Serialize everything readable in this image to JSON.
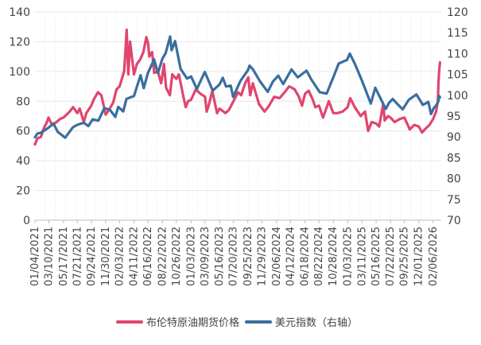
{
  "chart_data": {
    "type": "line",
    "title": "",
    "xlabel": "",
    "ylabel": "",
    "y_left": {
      "min": 0,
      "max": 140,
      "ticks": [
        0,
        20,
        40,
        60,
        80,
        100,
        120,
        140
      ]
    },
    "y_right": {
      "min": 70,
      "max": 120,
      "ticks": [
        70,
        75,
        80,
        85,
        90,
        95,
        100,
        105,
        110,
        115,
        120
      ]
    },
    "x_range": [
      "2021-01-04",
      "2026-03-10"
    ],
    "x_tick_labels": [
      "01/04/2021",
      "03/10/2021",
      "05/17/2021",
      "07/21/2021",
      "09/24/2021",
      "11/30/2021",
      "02/03/2022",
      "04/11/2022",
      "06/16/2022",
      "08/22/2022",
      "10/26/2022",
      "01/03/2023",
      "03/09/2023",
      "05/16/2023",
      "07/20/2023",
      "09/25/2023",
      "11/29/2023",
      "02/06/2024",
      "04/12/2024",
      "06/18/2024",
      "08/22/2024",
      "10/28/2024",
      "01/03/2025",
      "03/11/2025",
      "05/16/2025",
      "07/22/2025",
      "09/25/2025",
      "12/01/2025",
      "02/06/2026"
    ],
    "grid": true,
    "legend_position": "bottom",
    "series": [
      {
        "name": "布伦特原油期货价格",
        "axis": "left",
        "color": "#e0456e",
        "points": [
          [
            "2021-01-04",
            51
          ],
          [
            "2021-01-15",
            55
          ],
          [
            "2021-02-01",
            56
          ],
          [
            "2021-02-15",
            62
          ],
          [
            "2021-03-01",
            66
          ],
          [
            "2021-03-08",
            69
          ],
          [
            "2021-03-25",
            64
          ],
          [
            "2021-04-15",
            66
          ],
          [
            "2021-05-01",
            68
          ],
          [
            "2021-05-17",
            69
          ],
          [
            "2021-06-01",
            71
          ],
          [
            "2021-06-15",
            73
          ],
          [
            "2021-07-01",
            76
          ],
          [
            "2021-07-21",
            72
          ],
          [
            "2021-08-01",
            75
          ],
          [
            "2021-08-20",
            66
          ],
          [
            "2021-09-01",
            72
          ],
          [
            "2021-09-24",
            77
          ],
          [
            "2021-10-05",
            81
          ],
          [
            "2021-10-25",
            86
          ],
          [
            "2021-11-10",
            84
          ],
          [
            "2021-11-30",
            71
          ],
          [
            "2021-12-15",
            74
          ],
          [
            "2022-01-04",
            79
          ],
          [
            "2022-01-20",
            88
          ],
          [
            "2022-02-03",
            90
          ],
          [
            "2022-02-24",
            100
          ],
          [
            "2022-03-01",
            110
          ],
          [
            "2022-03-08",
            128
          ],
          [
            "2022-03-16",
            98
          ],
          [
            "2022-03-24",
            120
          ],
          [
            "2022-04-11",
            98
          ],
          [
            "2022-04-25",
            105
          ],
          [
            "2022-05-10",
            108
          ],
          [
            "2022-05-25",
            113
          ],
          [
            "2022-06-08",
            123
          ],
          [
            "2022-06-16",
            119
          ],
          [
            "2022-06-22",
            110
          ],
          [
            "2022-07-05",
            113
          ],
          [
            "2022-07-15",
            99
          ],
          [
            "2022-08-01",
            100
          ],
          [
            "2022-08-16",
            92
          ],
          [
            "2022-08-29",
            105
          ],
          [
            "2022-09-08",
            89
          ],
          [
            "2022-09-26",
            84
          ],
          [
            "2022-10-07",
            98
          ],
          [
            "2022-10-26",
            95
          ],
          [
            "2022-11-07",
            98
          ],
          [
            "2022-11-28",
            83
          ],
          [
            "2022-12-09",
            76
          ],
          [
            "2022-12-20",
            80
          ],
          [
            "2023-01-03",
            81
          ],
          [
            "2023-01-25",
            88
          ],
          [
            "2023-02-15",
            85
          ],
          [
            "2023-03-09",
            83
          ],
          [
            "2023-03-17",
            73
          ],
          [
            "2023-03-28",
            78
          ],
          [
            "2023-04-12",
            87
          ],
          [
            "2023-05-04",
            72
          ],
          [
            "2023-05-16",
            75
          ],
          [
            "2023-06-12",
            72
          ],
          [
            "2023-06-28",
            74
          ],
          [
            "2023-07-20",
            80
          ],
          [
            "2023-08-10",
            86
          ],
          [
            "2023-08-25",
            84
          ],
          [
            "2023-09-12",
            92
          ],
          [
            "2023-09-27",
            96
          ],
          [
            "2023-10-06",
            84
          ],
          [
            "2023-10-18",
            92
          ],
          [
            "2023-11-16",
            78
          ],
          [
            "2023-12-12",
            73
          ],
          [
            "2024-01-02",
            77
          ],
          [
            "2024-01-26",
            83
          ],
          [
            "2024-02-20",
            82
          ],
          [
            "2024-03-15",
            86
          ],
          [
            "2024-04-05",
            90
          ],
          [
            "2024-04-30",
            88
          ],
          [
            "2024-05-20",
            83
          ],
          [
            "2024-06-04",
            77
          ],
          [
            "2024-06-18",
            85
          ],
          [
            "2024-07-05",
            87
          ],
          [
            "2024-07-24",
            81
          ],
          [
            "2024-08-05",
            76
          ],
          [
            "2024-08-22",
            77
          ],
          [
            "2024-09-10",
            69
          ],
          [
            "2024-10-07",
            80
          ],
          [
            "2024-10-28",
            72
          ],
          [
            "2024-11-15",
            72
          ],
          [
            "2024-12-10",
            73
          ],
          [
            "2025-01-03",
            76
          ],
          [
            "2025-01-15",
            82
          ],
          [
            "2025-02-05",
            76
          ],
          [
            "2025-03-05",
            70
          ],
          [
            "2025-03-25",
            73
          ],
          [
            "2025-04-09",
            60
          ],
          [
            "2025-04-25",
            66
          ],
          [
            "2025-05-16",
            65
          ],
          [
            "2025-05-30",
            63
          ],
          [
            "2025-06-18",
            78
          ],
          [
            "2025-06-25",
            67
          ],
          [
            "2025-07-10",
            70
          ],
          [
            "2025-07-22",
            69
          ],
          [
            "2025-08-10",
            66
          ],
          [
            "2025-09-03",
            68
          ],
          [
            "2025-09-25",
            69
          ],
          [
            "2025-10-20",
            61
          ],
          [
            "2025-11-10",
            64
          ],
          [
            "2025-12-01",
            63
          ],
          [
            "2025-12-16",
            59
          ],
          [
            "2026-01-05",
            62
          ],
          [
            "2026-01-20",
            64
          ],
          [
            "2026-02-06",
            68
          ],
          [
            "2026-02-20",
            73
          ],
          [
            "2026-02-28",
            80
          ],
          [
            "2026-03-03",
            92
          ],
          [
            "2026-03-06",
            100
          ],
          [
            "2026-03-10",
            106
          ]
        ]
      },
      {
        "name": "美元指数（右轴）",
        "axis": "right",
        "color": "#3a6e9f",
        "points": [
          [
            "2021-01-04",
            89.9
          ],
          [
            "2021-01-15",
            90.8
          ],
          [
            "2021-02-01",
            91.0
          ],
          [
            "2021-03-08",
            92.2
          ],
          [
            "2021-03-31",
            93.2
          ],
          [
            "2021-04-20",
            91.2
          ],
          [
            "2021-05-25",
            89.8
          ],
          [
            "2021-06-30",
            92.3
          ],
          [
            "2021-07-21",
            92.9
          ],
          [
            "2021-08-20",
            93.4
          ],
          [
            "2021-09-10",
            92.6
          ],
          [
            "2021-09-30",
            94.2
          ],
          [
            "2021-10-27",
            93.9
          ],
          [
            "2021-11-24",
            96.9
          ],
          [
            "2021-12-20",
            96.5
          ],
          [
            "2022-01-14",
            94.8
          ],
          [
            "2022-01-28",
            97.2
          ],
          [
            "2022-02-20",
            96.1
          ],
          [
            "2022-03-07",
            99.1
          ],
          [
            "2022-04-11",
            99.8
          ],
          [
            "2022-05-12",
            104.8
          ],
          [
            "2022-05-27",
            101.7
          ],
          [
            "2022-06-15",
            105.3
          ],
          [
            "2022-07-14",
            108.6
          ],
          [
            "2022-08-01",
            105.3
          ],
          [
            "2022-08-22",
            108.8
          ],
          [
            "2022-09-06",
            110.1
          ],
          [
            "2022-09-27",
            114.1
          ],
          [
            "2022-10-04",
            110.8
          ],
          [
            "2022-10-20",
            113.0
          ],
          [
            "2022-11-15",
            106.3
          ],
          [
            "2022-12-15",
            104.0
          ],
          [
            "2023-01-03",
            104.5
          ],
          [
            "2023-01-30",
            101.5
          ],
          [
            "2023-03-08",
            105.6
          ],
          [
            "2023-04-14",
            101.1
          ],
          [
            "2023-05-16",
            102.6
          ],
          [
            "2023-05-31",
            104.2
          ],
          [
            "2023-06-15",
            102.1
          ],
          [
            "2023-07-07",
            102.3
          ],
          [
            "2023-07-18",
            99.6
          ],
          [
            "2023-08-22",
            103.5
          ],
          [
            "2023-09-25",
            106.0
          ],
          [
            "2023-10-03",
            107.1
          ],
          [
            "2023-10-20",
            106.1
          ],
          [
            "2023-11-20",
            103.4
          ],
          [
            "2023-12-27",
            100.8
          ],
          [
            "2024-01-20",
            103.3
          ],
          [
            "2024-02-14",
            104.7
          ],
          [
            "2024-03-08",
            102.7
          ],
          [
            "2024-04-16",
            106.2
          ],
          [
            "2024-05-15",
            104.3
          ],
          [
            "2024-06-25",
            105.9
          ],
          [
            "2024-07-17",
            103.8
          ],
          [
            "2024-08-26",
            100.7
          ],
          [
            "2024-09-27",
            100.4
          ],
          [
            "2024-10-28",
            104.3
          ],
          [
            "2024-11-22",
            107.6
          ],
          [
            "2024-12-31",
            108.5
          ],
          [
            "2025-01-13",
            110.0
          ],
          [
            "2025-02-05",
            107.6
          ],
          [
            "2025-03-11",
            103.5
          ],
          [
            "2025-04-21",
            98.0
          ],
          [
            "2025-05-12",
            101.8
          ],
          [
            "2025-06-30",
            96.7
          ],
          [
            "2025-07-14",
            98.1
          ],
          [
            "2025-08-01",
            99.1
          ],
          [
            "2025-08-25",
            97.8
          ],
          [
            "2025-09-17",
            96.6
          ],
          [
            "2025-10-15",
            98.9
          ],
          [
            "2025-11-20",
            100.2
          ],
          [
            "2025-12-20",
            97.7
          ],
          [
            "2026-01-15",
            98.4
          ],
          [
            "2026-01-27",
            95.5
          ],
          [
            "2026-02-10",
            97.0
          ],
          [
            "2026-02-20",
            97.5
          ],
          [
            "2026-03-03",
            98.6
          ],
          [
            "2026-03-06",
            99.8
          ],
          [
            "2026-03-10",
            99.5
          ]
        ]
      }
    ]
  }
}
